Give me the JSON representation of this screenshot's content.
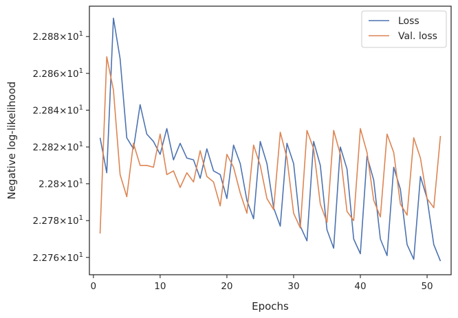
{
  "chart_data": {
    "type": "line",
    "xlabel": "Epochs",
    "ylabel": "Negative log-likelihood",
    "xlim": [
      -0.6,
      53.6
    ],
    "ylim": [
      22.7506,
      22.8965
    ],
    "x_ticks": [
      0,
      10,
      20,
      30,
      40,
      50
    ],
    "y_ticks": [
      {
        "value": 22.76,
        "mantissa": "2.276",
        "base": "10",
        "exp": "1"
      },
      {
        "value": 22.78,
        "mantissa": "2.278",
        "base": "10",
        "exp": "1"
      },
      {
        "value": 22.8,
        "mantissa": "2.28",
        "base": "10",
        "exp": "1"
      },
      {
        "value": 22.82,
        "mantissa": "2.282",
        "base": "10",
        "exp": "1"
      },
      {
        "value": 22.84,
        "mantissa": "2.284",
        "base": "10",
        "exp": "1"
      },
      {
        "value": 22.86,
        "mantissa": "2.286",
        "base": "10",
        "exp": "1"
      },
      {
        "value": 22.88,
        "mantissa": "2.288",
        "base": "10",
        "exp": "1"
      }
    ],
    "grid": false,
    "legend_position": "top-right",
    "x": [
      1,
      2,
      3,
      4,
      5,
      6,
      7,
      8,
      9,
      10,
      11,
      12,
      13,
      14,
      15,
      16,
      17,
      18,
      19,
      20,
      21,
      22,
      23,
      24,
      25,
      26,
      27,
      28,
      29,
      30,
      31,
      32,
      33,
      34,
      35,
      36,
      37,
      38,
      39,
      40,
      41,
      42,
      43,
      44,
      45,
      46,
      47,
      48,
      49,
      50,
      51,
      52
    ],
    "series": [
      {
        "name": "Loss",
        "color": "#4c72b0",
        "values": [
          22.825,
          22.806,
          22.89,
          22.868,
          22.825,
          22.819,
          22.843,
          22.827,
          22.823,
          22.816,
          22.83,
          22.813,
          22.822,
          22.814,
          22.813,
          22.803,
          22.819,
          22.807,
          22.805,
          22.792,
          22.821,
          22.811,
          22.791,
          22.781,
          22.823,
          22.811,
          22.787,
          22.777,
          22.822,
          22.811,
          22.777,
          22.769,
          22.823,
          22.81,
          22.775,
          22.765,
          22.82,
          22.808,
          22.77,
          22.762,
          22.815,
          22.802,
          22.77,
          22.761,
          22.809,
          22.797,
          22.767,
          22.759,
          22.804,
          22.792,
          22.767,
          22.758
        ]
      },
      {
        "name": "Val. loss",
        "color": "#dd8452",
        "values": [
          22.773,
          22.869,
          22.851,
          22.805,
          22.793,
          22.822,
          22.81,
          22.81,
          22.809,
          22.827,
          22.805,
          22.807,
          22.798,
          22.806,
          22.801,
          22.818,
          22.804,
          22.801,
          22.788,
          22.816,
          22.809,
          22.795,
          22.784,
          22.821,
          22.81,
          22.792,
          22.786,
          22.828,
          22.814,
          22.784,
          22.776,
          22.829,
          22.819,
          22.789,
          22.779,
          22.829,
          22.816,
          22.785,
          22.78,
          22.83,
          22.817,
          22.791,
          22.782,
          22.827,
          22.817,
          22.789,
          22.783,
          22.825,
          22.814,
          22.792,
          22.787,
          22.826
        ]
      }
    ]
  }
}
